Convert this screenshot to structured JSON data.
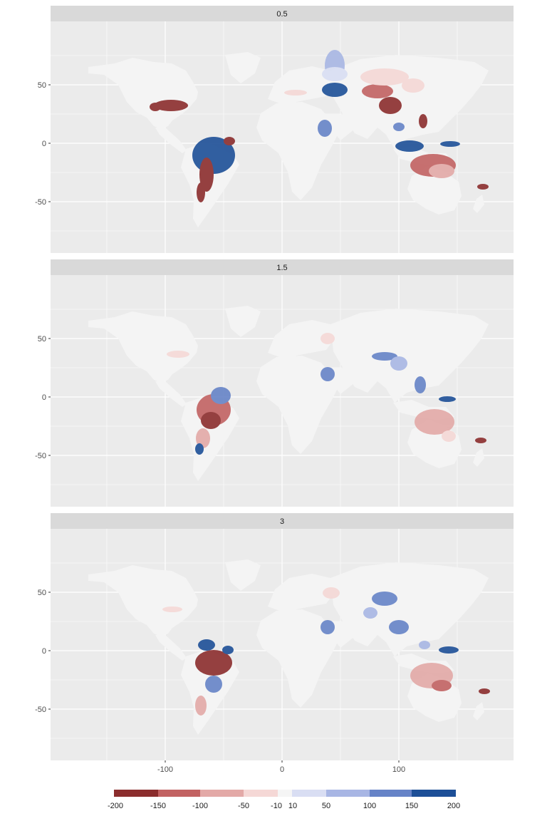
{
  "panels": [
    {
      "label": "0.5"
    },
    {
      "label": "1.5"
    },
    {
      "label": "3"
    }
  ],
  "x_ticks": [
    "-100",
    "0",
    "100"
  ],
  "y_ticks": [
    "50",
    "0",
    "-50"
  ],
  "legend": {
    "labels": [
      "-200",
      "-150",
      "-100",
      "-50",
      "-10",
      "10",
      "50",
      "100",
      "150",
      "200"
    ],
    "colors": [
      "#8b2d2d",
      "#c26262",
      "#e3a9a7",
      "#f5d8d6",
      "#f5f5f5",
      "#d9def3",
      "#a8b6e4",
      "#6683c7",
      "#1d4f97"
    ]
  },
  "colors": {
    "panel_bg": "#ebebeb",
    "strip_bg": "#d9d9d9",
    "land": "#f4f4f4",
    "grid": "#ffffff"
  }
}
